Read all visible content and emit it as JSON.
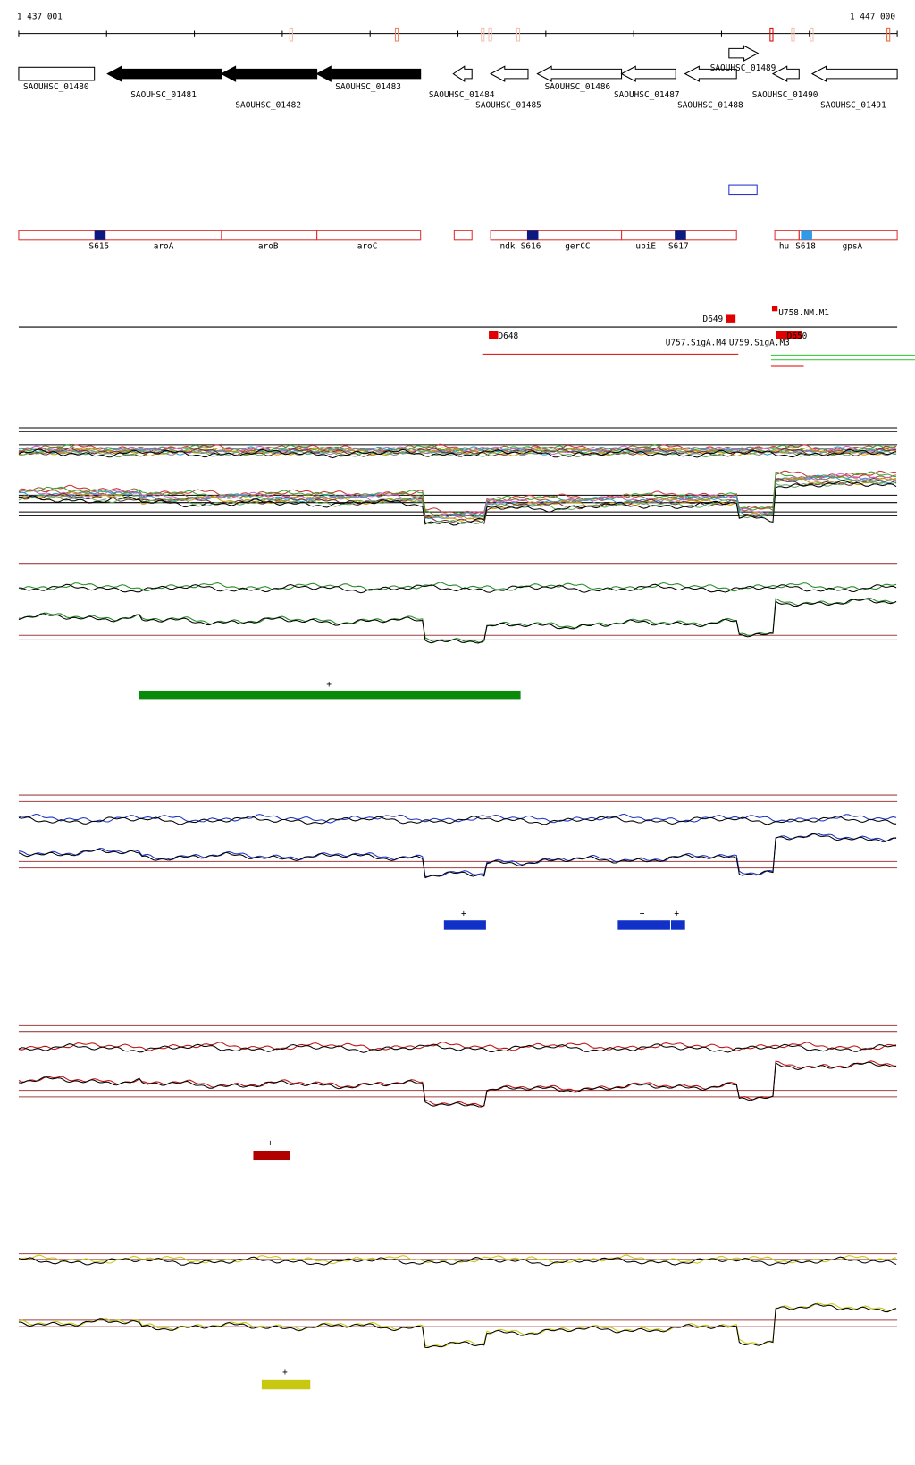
{
  "ruler": {
    "start": "1 437 001",
    "end": "1 447 000"
  },
  "genes": [
    {
      "label": "SAOUHSC_01480"
    },
    {
      "label": "SAOUHSC_01481"
    },
    {
      "label": "SAOUHSC_01482"
    },
    {
      "label": "SAOUHSC_01483"
    },
    {
      "label": "SAOUHSC_01484"
    },
    {
      "label": "SAOUHSC_01485"
    },
    {
      "label": "SAOUHSC_01486"
    },
    {
      "label": "SAOUHSC_01487"
    },
    {
      "label": "SAOUHSC_01488"
    },
    {
      "label": "SAOUHSC_01489"
    },
    {
      "label": "SAOUHSC_01490"
    },
    {
      "label": "SAOUHSC_01491"
    }
  ],
  "features": [
    "S615",
    "aroA",
    "aroB",
    "aroC",
    "ndk",
    "S616",
    "gerCC",
    "ubiE",
    "S617",
    "hu",
    "S618",
    "gpsA"
  ],
  "markers": [
    "D649",
    "U758.NM.M1",
    "D648",
    "U757.SigA.M4",
    "U759.SigA.M3",
    "D650"
  ],
  "tracks": [
    {
      "segments": [
        {
          "label": "+"
        }
      ]
    },
    {
      "segments": [
        {
          "label": "+"
        },
        {
          "label": "+"
        },
        {
          "label": "+"
        }
      ]
    },
    {
      "segments": [
        {
          "label": "+"
        }
      ]
    },
    {
      "segments": [
        {
          "label": "+"
        }
      ]
    }
  ]
}
